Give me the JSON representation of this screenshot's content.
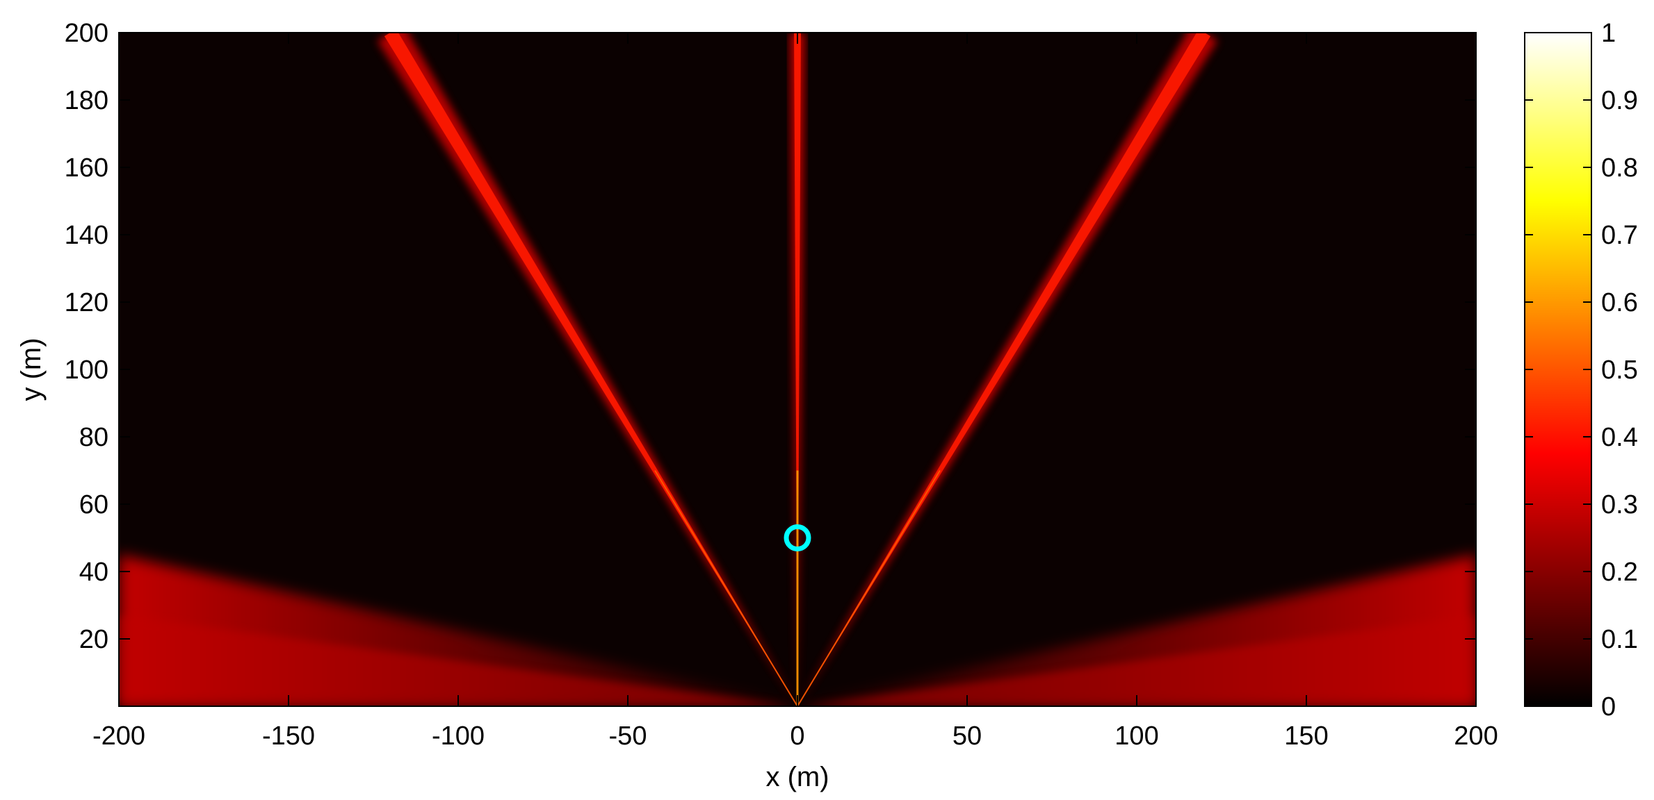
{
  "chart_data": {
    "type": "heatmap",
    "title": "",
    "xlabel": "x (m)",
    "ylabel": "y (m)",
    "xlim": [
      -200,
      200
    ],
    "ylim": [
      0,
      200
    ],
    "x_ticks": [
      -200,
      -150,
      -100,
      -50,
      0,
      50,
      100,
      150,
      200
    ],
    "x_tick_labels": [
      "-200",
      "-150",
      "-100",
      "-50",
      "0",
      "50",
      "100",
      "150",
      "200"
    ],
    "y_ticks": [
      20,
      40,
      60,
      80,
      100,
      120,
      140,
      160,
      180,
      200
    ],
    "y_tick_labels": [
      "20",
      "40",
      "60",
      "80",
      "100",
      "120",
      "140",
      "160",
      "180",
      "200"
    ],
    "grid": false,
    "colormap": "hot",
    "colorbar": {
      "location": "right",
      "range": [
        0,
        1
      ],
      "ticks": [
        0,
        0.1,
        0.2,
        0.3,
        0.4,
        0.5,
        0.6,
        0.7,
        0.8,
        0.9,
        1
      ],
      "tick_labels": [
        "0",
        "0.1",
        "0.2",
        "0.3",
        "0.4",
        "0.5",
        "0.6",
        "0.7",
        "0.8",
        "0.9",
        "1"
      ]
    },
    "background_value": 0.03,
    "beams": [
      {
        "name": "left-beam",
        "from": [
          0,
          0
        ],
        "to": [
          -120,
          200
        ],
        "peak_value": 0.3
      },
      {
        "name": "center-beam",
        "from": [
          0,
          0
        ],
        "to": [
          0,
          200
        ],
        "peak_value": 0.35
      },
      {
        "name": "right-beam",
        "from": [
          0,
          0
        ],
        "to": [
          120,
          200
        ],
        "peak_value": 0.3
      }
    ],
    "grazing_lobes": [
      {
        "side": "left",
        "y_top_at_edge": 45,
        "peak_value": 0.3
      },
      {
        "side": "right",
        "y_top_at_edge": 45,
        "peak_value": 0.3
      }
    ],
    "marker": {
      "shape": "circle",
      "x": 0,
      "y": 50,
      "color": "#00ffff"
    }
  }
}
